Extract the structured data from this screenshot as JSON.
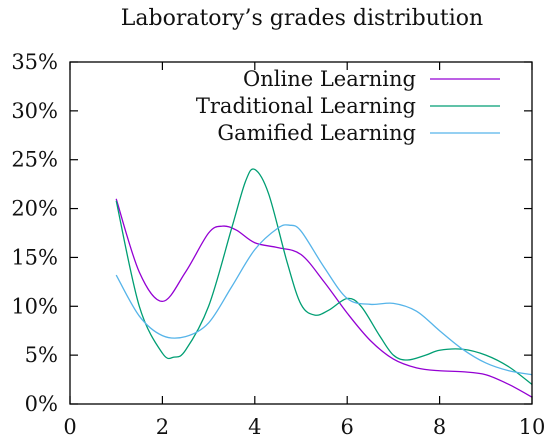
{
  "chart_data": {
    "type": "line",
    "title": "Laboratory’s grades distribution",
    "xlabel": "",
    "ylabel": "",
    "xlim": [
      0,
      10
    ],
    "ylim": [
      0,
      35
    ],
    "xticks": [
      0,
      2,
      4,
      6,
      8,
      10
    ],
    "xtick_labels": [
      "0",
      "2",
      "4",
      "6",
      "8",
      "10"
    ],
    "yticks": [
      0,
      5,
      10,
      15,
      20,
      25,
      30,
      35
    ],
    "ytick_labels": [
      "0%",
      "5%",
      "10%",
      "15%",
      "20%",
      "25%",
      "30%",
      "35%"
    ],
    "grid": false,
    "legend_position": "top-right",
    "series": [
      {
        "name": "Online Learning",
        "color": "#9400d3",
        "x": [
          1,
          1.5,
          2,
          2.5,
          3,
          3.3,
          3.6,
          4,
          4.5,
          5,
          5.5,
          6,
          6.5,
          7,
          7.5,
          8,
          8.5,
          9,
          9.5,
          10
        ],
        "y": [
          21.0,
          13.5,
          10.5,
          13.5,
          17.5,
          18.2,
          17.8,
          16.5,
          16.0,
          15.3,
          12.5,
          9.3,
          6.5,
          4.6,
          3.7,
          3.4,
          3.3,
          3.0,
          2.0,
          0.7
        ]
      },
      {
        "name": "Traditional Learning",
        "color": "#009e73",
        "x": [
          1,
          1.5,
          2,
          2.25,
          2.5,
          3,
          3.5,
          3.8,
          4,
          4.3,
          4.7,
          5,
          5.3,
          5.6,
          6,
          6.3,
          6.7,
          7,
          7.3,
          7.7,
          8,
          8.5,
          9,
          9.5,
          10
        ],
        "y": [
          20.8,
          10.0,
          5.2,
          4.8,
          5.5,
          10.0,
          18.0,
          22.8,
          24.0,
          21.5,
          14.5,
          10.2,
          9.1,
          9.6,
          10.8,
          10.0,
          7.0,
          5.0,
          4.5,
          5.0,
          5.5,
          5.6,
          5.0,
          3.8,
          2.0
        ]
      },
      {
        "name": "Gamified Learning",
        "color": "#56b4e9",
        "x": [
          1,
          1.5,
          2,
          2.5,
          3,
          3.5,
          4,
          4.5,
          4.75,
          5,
          5.5,
          6,
          6.5,
          7,
          7.5,
          8,
          8.5,
          9,
          9.5,
          10
        ],
        "y": [
          13.2,
          9.0,
          7.0,
          6.9,
          8.3,
          12.0,
          15.8,
          18.0,
          18.3,
          17.7,
          14.0,
          10.8,
          10.2,
          10.3,
          9.5,
          7.5,
          5.6,
          4.2,
          3.4,
          3.0
        ]
      }
    ]
  }
}
